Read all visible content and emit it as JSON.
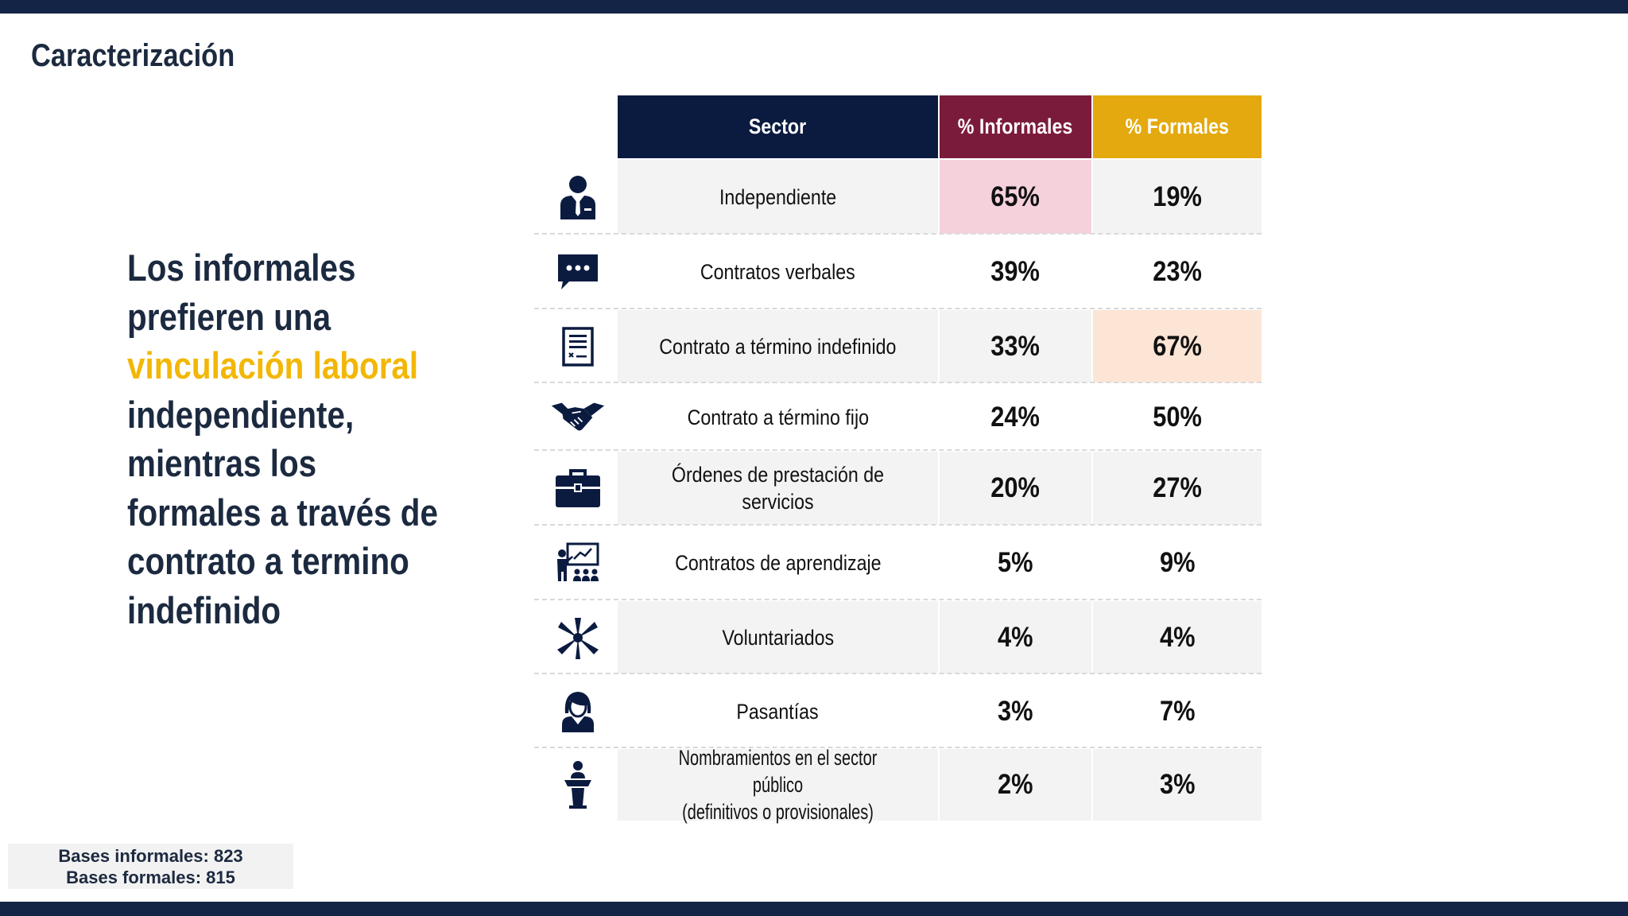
{
  "slide": {
    "title": "Caracterización",
    "headline_lines": [
      "Los informales",
      "prefieren una",
      "vinculación laboral",
      "independiente,",
      "mientras los",
      "formales a través de",
      "contrato a termino",
      "indefinido"
    ],
    "bases": {
      "informales": "Bases informales: 823",
      "formales": "Bases formales: 815"
    }
  },
  "colors": {
    "navy": "#0b1b40",
    "maroon": "#7b1b3b",
    "gold": "#e3a90e",
    "highlight_yellow": "#f2b705",
    "pink_highlight": "#f5d1dc",
    "peach_highlight": "#fde5d5"
  },
  "table": {
    "headers": {
      "sector": "Sector",
      "informales": "% Informales",
      "formales": "% Formales"
    },
    "rows": [
      {
        "icon": "businessman-icon",
        "sector": "Independiente",
        "informales": "65%",
        "formales": "19%"
      },
      {
        "icon": "chat-bubble-icon",
        "sector": "Contratos verbales",
        "informales": "39%",
        "formales": "23%"
      },
      {
        "icon": "document-contract-icon",
        "sector": "Contrato a término indefinido",
        "informales": "33%",
        "formales": "67%"
      },
      {
        "icon": "handshake-icon",
        "sector": "Contrato a término fijo",
        "informales": "24%",
        "formales": "50%"
      },
      {
        "icon": "briefcase-icon",
        "sector": "Órdenes de prestación de servicios",
        "informales": "20%",
        "formales": "27%"
      },
      {
        "icon": "presentation-class-icon",
        "sector": "Contratos de aprendizaje",
        "informales": "5%",
        "formales": "9%"
      },
      {
        "icon": "volunteers-hands-icon",
        "sector": "Voluntariados",
        "informales": "4%",
        "formales": "4%"
      },
      {
        "icon": "intern-woman-icon",
        "sector": "Pasantías",
        "informales": "3%",
        "formales": "7%"
      },
      {
        "icon": "podium-speaker-icon",
        "sector_line1": "Nombramientos en el sector público",
        "sector_line2": "(definitivos o provisionales)",
        "informales": "2%",
        "formales": "3%"
      }
    ]
  }
}
